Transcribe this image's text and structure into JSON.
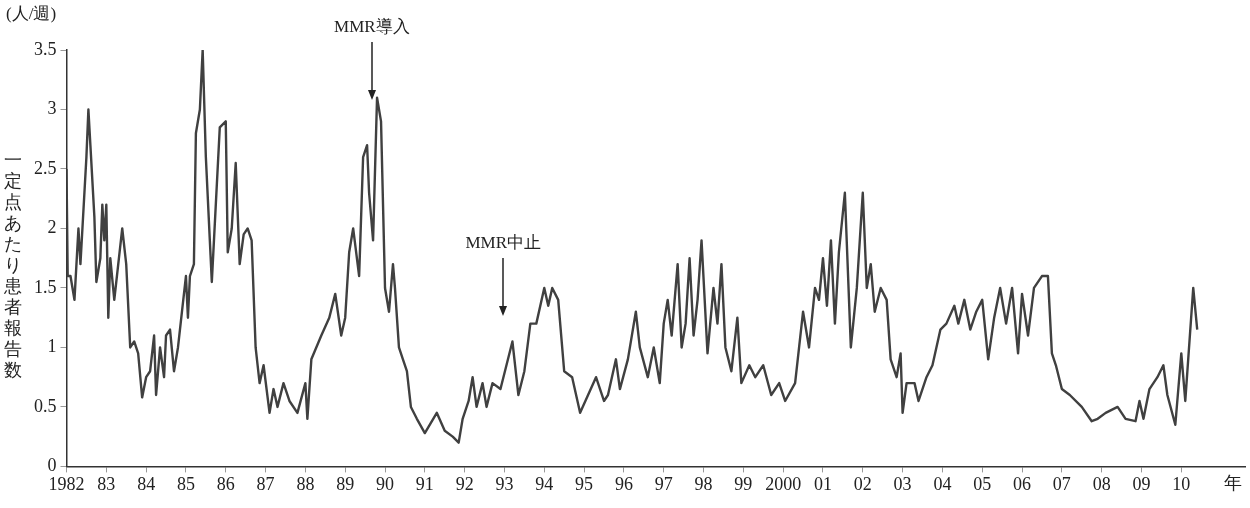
{
  "chart_data": {
    "type": "line",
    "xlabel": "年",
    "ylabel": "一定点あたり患者報告数",
    "annotations": [
      "(人/週)",
      {
        "text": "MMR導入",
        "x": 1989.67
      },
      {
        "text": "MMR中止",
        "x": 1992.97
      }
    ],
    "xlim": [
      1982,
      2011.6
    ],
    "ylim": [
      0,
      3.5
    ],
    "xticks": [
      1982,
      {
        "value": 1983,
        "label": "83"
      },
      {
        "value": 1984,
        "label": "84"
      },
      {
        "value": 1985,
        "label": "85"
      },
      {
        "value": 1986,
        "label": "86"
      },
      {
        "value": 1987,
        "label": "87"
      },
      {
        "value": 1988,
        "label": "88"
      },
      {
        "value": 1989,
        "label": "89"
      },
      {
        "value": 1990,
        "label": "90"
      },
      {
        "value": 1991,
        "label": "91"
      },
      {
        "value": 1992,
        "label": "92"
      },
      {
        "value": 1993,
        "label": "93"
      },
      {
        "value": 1994,
        "label": "94"
      },
      {
        "value": 1995,
        "label": "95"
      },
      {
        "value": 1996,
        "label": "96"
      },
      {
        "value": 1997,
        "label": "97"
      },
      {
        "value": 1998,
        "label": "98"
      },
      {
        "value": 1999,
        "label": "99"
      },
      2000,
      {
        "value": 2001,
        "label": "01"
      },
      {
        "value": 2002,
        "label": "02"
      },
      {
        "value": 2003,
        "label": "03"
      },
      {
        "value": 2004,
        "label": "04"
      },
      {
        "value": 2005,
        "label": "05"
      },
      {
        "value": 2006,
        "label": "06"
      },
      {
        "value": 2007,
        "label": "07"
      },
      {
        "value": 2008,
        "label": "08"
      },
      {
        "value": 2009,
        "label": "09"
      },
      {
        "value": 2010,
        "label": "10"
      }
    ],
    "yticks": [
      0,
      0.5,
      1,
      1.5,
      2,
      2.5,
      3,
      3.5
    ],
    "grid": false,
    "legend": false,
    "marker": "none",
    "line_style": "solid",
    "series": [
      {
        "color": "#404040",
        "x": [
          1982.0,
          1982.03,
          1982.1,
          1982.2,
          1982.3,
          1982.35,
          1982.4,
          1982.5,
          1982.55,
          1982.6,
          1982.7,
          1982.75,
          1982.85,
          1982.9,
          1982.95,
          1983.0,
          1983.05,
          1983.1,
          1983.2,
          1983.3,
          1983.4,
          1983.5,
          1983.6,
          1983.7,
          1983.8,
          1983.9,
          1984.0,
          1984.1,
          1984.2,
          1984.25,
          1984.35,
          1984.45,
          1984.5,
          1984.6,
          1984.7,
          1984.8,
          1984.9,
          1985.0,
          1985.05,
          1985.1,
          1985.2,
          1985.25,
          1985.35,
          1985.42,
          1985.5,
          1985.6,
          1985.65,
          1985.75,
          1985.85,
          1986.0,
          1986.05,
          1986.15,
          1986.25,
          1986.35,
          1986.45,
          1986.55,
          1986.65,
          1986.75,
          1986.85,
          1986.95,
          1987.1,
          1987.2,
          1987.3,
          1987.45,
          1987.6,
          1987.8,
          1988.0,
          1988.05,
          1988.15,
          1988.4,
          1988.6,
          1988.75,
          1988.9,
          1989.0,
          1989.1,
          1989.2,
          1989.35,
          1989.45,
          1989.55,
          1989.6,
          1989.7,
          1989.8,
          1989.9,
          1990.0,
          1990.1,
          1990.2,
          1990.25,
          1990.35,
          1990.45,
          1990.55,
          1990.65,
          1990.8,
          1991.0,
          1991.3,
          1991.5,
          1991.7,
          1991.85,
          1991.95,
          1992.1,
          1992.2,
          1992.3,
          1992.45,
          1992.55,
          1992.7,
          1992.9,
          1993.05,
          1993.2,
          1993.35,
          1993.5,
          1993.65,
          1993.8,
          1994.0,
          1994.1,
          1994.2,
          1994.35,
          1994.5,
          1994.7,
          1994.9,
          1995.1,
          1995.3,
          1995.5,
          1995.6,
          1995.8,
          1995.9,
          1996.1,
          1996.3,
          1996.4,
          1996.6,
          1996.75,
          1996.9,
          1997.0,
          1997.1,
          1997.2,
          1997.35,
          1997.45,
          1997.55,
          1997.65,
          1997.75,
          1997.85,
          1997.95,
          1998.1,
          1998.25,
          1998.35,
          1998.45,
          1998.55,
          1998.7,
          1998.85,
          1998.95,
          1999.15,
          1999.3,
          1999.5,
          1999.7,
          1999.9,
          2000.05,
          2000.3,
          2000.4,
          2000.5,
          2000.65,
          2000.8,
          2000.9,
          2001.0,
          2001.1,
          2001.2,
          2001.3,
          2001.4,
          2001.55,
          2001.7,
          2001.85,
          2002.0,
          2002.1,
          2002.2,
          2002.3,
          2002.45,
          2002.6,
          2002.7,
          2002.85,
          2002.95,
          2003.0,
          2003.1,
          2003.3,
          2003.4,
          2003.6,
          2003.75,
          2003.95,
          2004.1,
          2004.3,
          2004.4,
          2004.55,
          2004.7,
          2004.85,
          2005.0,
          2005.15,
          2005.3,
          2005.45,
          2005.6,
          2005.75,
          2005.9,
          2006.0,
          2006.15,
          2006.3,
          2006.5,
          2006.65,
          2006.75,
          2006.85,
          2007.0,
          2007.2,
          2007.5,
          2007.75,
          2007.9,
          2008.1,
          2008.4,
          2008.6,
          2008.85,
          2008.95,
          2009.05,
          2009.2,
          2009.4,
          2009.55,
          2009.65,
          2009.85,
          2010.0,
          2010.1,
          2010.3,
          2010.4
        ],
        "values": [
          2.5,
          1.6,
          1.6,
          1.4,
          2.0,
          1.7,
          2.0,
          2.6,
          3.0,
          2.7,
          2.1,
          1.55,
          1.75,
          2.2,
          1.9,
          2.2,
          1.25,
          1.75,
          1.4,
          1.7,
          2.0,
          1.7,
          1.0,
          1.05,
          0.95,
          0.58,
          0.75,
          0.8,
          1.1,
          0.6,
          1.0,
          0.75,
          1.1,
          1.15,
          0.8,
          1.0,
          1.3,
          1.6,
          1.25,
          1.6,
          1.7,
          2.8,
          3.0,
          3.5,
          2.6,
          1.9,
          1.55,
          2.2,
          2.85,
          2.9,
          1.8,
          2.0,
          2.55,
          1.7,
          1.95,
          2.0,
          1.9,
          1.0,
          0.7,
          0.85,
          0.45,
          0.65,
          0.5,
          0.7,
          0.55,
          0.45,
          0.7,
          0.4,
          0.9,
          1.1,
          1.25,
          1.45,
          1.1,
          1.25,
          1.8,
          2.0,
          1.6,
          2.6,
          2.7,
          2.3,
          1.9,
          3.1,
          2.9,
          1.5,
          1.3,
          1.7,
          1.5,
          1.0,
          0.9,
          0.8,
          0.5,
          0.4,
          0.28,
          0.45,
          0.3,
          0.25,
          0.2,
          0.4,
          0.55,
          0.75,
          0.5,
          0.7,
          0.5,
          0.7,
          0.65,
          0.85,
          1.05,
          0.6,
          0.8,
          1.2,
          1.2,
          1.5,
          1.35,
          1.5,
          1.4,
          0.8,
          0.75,
          0.45,
          0.6,
          0.75,
          0.55,
          0.6,
          0.9,
          0.65,
          0.9,
          1.3,
          1.0,
          0.75,
          1.0,
          0.7,
          1.2,
          1.4,
          1.1,
          1.7,
          1.0,
          1.2,
          1.75,
          1.1,
          1.4,
          1.9,
          0.95,
          1.5,
          1.2,
          1.7,
          1.0,
          0.8,
          1.25,
          0.7,
          0.85,
          0.75,
          0.85,
          0.6,
          0.7,
          0.55,
          0.7,
          1.0,
          1.3,
          1.0,
          1.5,
          1.4,
          1.75,
          1.35,
          1.9,
          1.2,
          1.8,
          2.3,
          1.0,
          1.5,
          2.3,
          1.5,
          1.7,
          1.3,
          1.5,
          1.4,
          0.9,
          0.75,
          0.95,
          0.45,
          0.7,
          0.7,
          0.55,
          0.75,
          0.85,
          1.15,
          1.2,
          1.35,
          1.2,
          1.4,
          1.15,
          1.3,
          1.4,
          0.9,
          1.25,
          1.5,
          1.2,
          1.5,
          0.95,
          1.45,
          1.1,
          1.5,
          1.6,
          1.6,
          0.95,
          0.85,
          0.65,
          0.6,
          0.5,
          0.38,
          0.4,
          0.45,
          0.5,
          0.4,
          0.38,
          0.55,
          0.4,
          0.65,
          0.75,
          0.85,
          0.6,
          0.35,
          0.95,
          0.55,
          1.5,
          1.15
        ]
      }
    ]
  }
}
